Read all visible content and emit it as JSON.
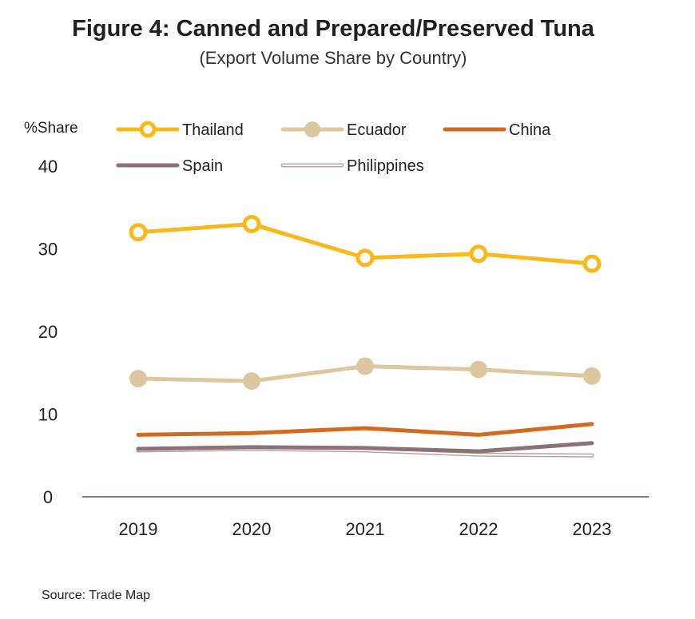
{
  "chart_data": {
    "type": "line",
    "title": "Figure 4: Canned and Prepared/Preserved Tuna",
    "subtitle": "(Export Volume Share by Country)",
    "ylabel": "%Share",
    "xlabel": "",
    "categories": [
      "2019",
      "2020",
      "2021",
      "2022",
      "2023"
    ],
    "ylim": [
      0,
      40
    ],
    "yticks": [
      0,
      10,
      20,
      30,
      40
    ],
    "series": [
      {
        "name": "Thailand",
        "values": [
          32.0,
          33.0,
          28.9,
          29.4,
          28.2
        ],
        "color": "#F9B91D",
        "marker": "ring"
      },
      {
        "name": "Ecuador",
        "values": [
          14.3,
          14.0,
          15.8,
          15.4,
          14.6
        ],
        "color": "#DCC7A1",
        "marker": "dot"
      },
      {
        "name": "China",
        "values": [
          7.5,
          7.7,
          8.3,
          7.5,
          8.8
        ],
        "color": "#D46A1F",
        "marker": "none"
      },
      {
        "name": "Spain",
        "values": [
          5.8,
          6.0,
          5.9,
          5.5,
          6.5
        ],
        "color": "#8C7272",
        "marker": "none"
      },
      {
        "name": "Philippines",
        "values": [
          5.6,
          5.8,
          5.6,
          5.1,
          5.0
        ],
        "color": "#B8A3A3",
        "marker": "hollow"
      }
    ],
    "legend_position": "top",
    "grid": false,
    "source": "Source: Trade Map"
  }
}
